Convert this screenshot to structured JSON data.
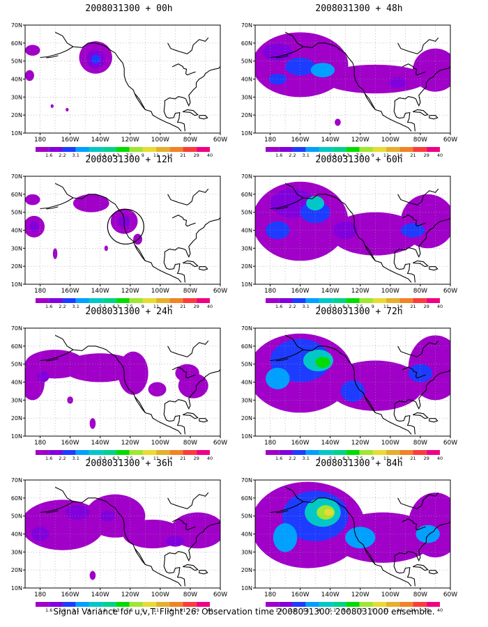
{
  "footer": "Signal Variance for u,v,T. Flight 26. Observation time 2008031300. 2008031000 ensemble.",
  "lat_ticks": [
    "10N",
    "20N",
    "30N",
    "40N",
    "50N",
    "60N",
    "70N"
  ],
  "lon_ticks": [
    "180",
    "160W",
    "140W",
    "120W",
    "100W",
    "80W",
    "60W"
  ],
  "colorbar": {
    "labels": [
      "1.6",
      "2.2",
      "3.1",
      "4",
      "5.1",
      "6.3",
      "7.5",
      "9",
      "11",
      "14",
      "21",
      "29",
      "40"
    ],
    "colors": [
      "#a000c8",
      "#8200dc",
      "#1e3cff",
      "#00a0ff",
      "#00c8c8",
      "#00d28c",
      "#00dc00",
      "#a0e632",
      "#e6dc32",
      "#e6af2d",
      "#f08228",
      "#fa3c3c",
      "#f00082"
    ]
  },
  "panels": [
    {
      "id": "p00",
      "title": "2008031300 + 00h",
      "level": 0
    },
    {
      "id": "p48",
      "title": "2008031300 + 48h",
      "level": 3
    },
    {
      "id": "p12",
      "title": "2008031300 + 12h",
      "level": 0
    },
    {
      "id": "p60",
      "title": "2008031300 + 60h",
      "level": 4
    },
    {
      "id": "p24",
      "title": "2008031300 + 24h",
      "level": 1
    },
    {
      "id": "p72",
      "title": "2008031300 + 72h",
      "level": 5
    },
    {
      "id": "p36",
      "title": "2008031300 + 36h",
      "level": 2
    },
    {
      "id": "p84",
      "title": "2008031300 + 84h",
      "level": 6
    }
  ]
}
